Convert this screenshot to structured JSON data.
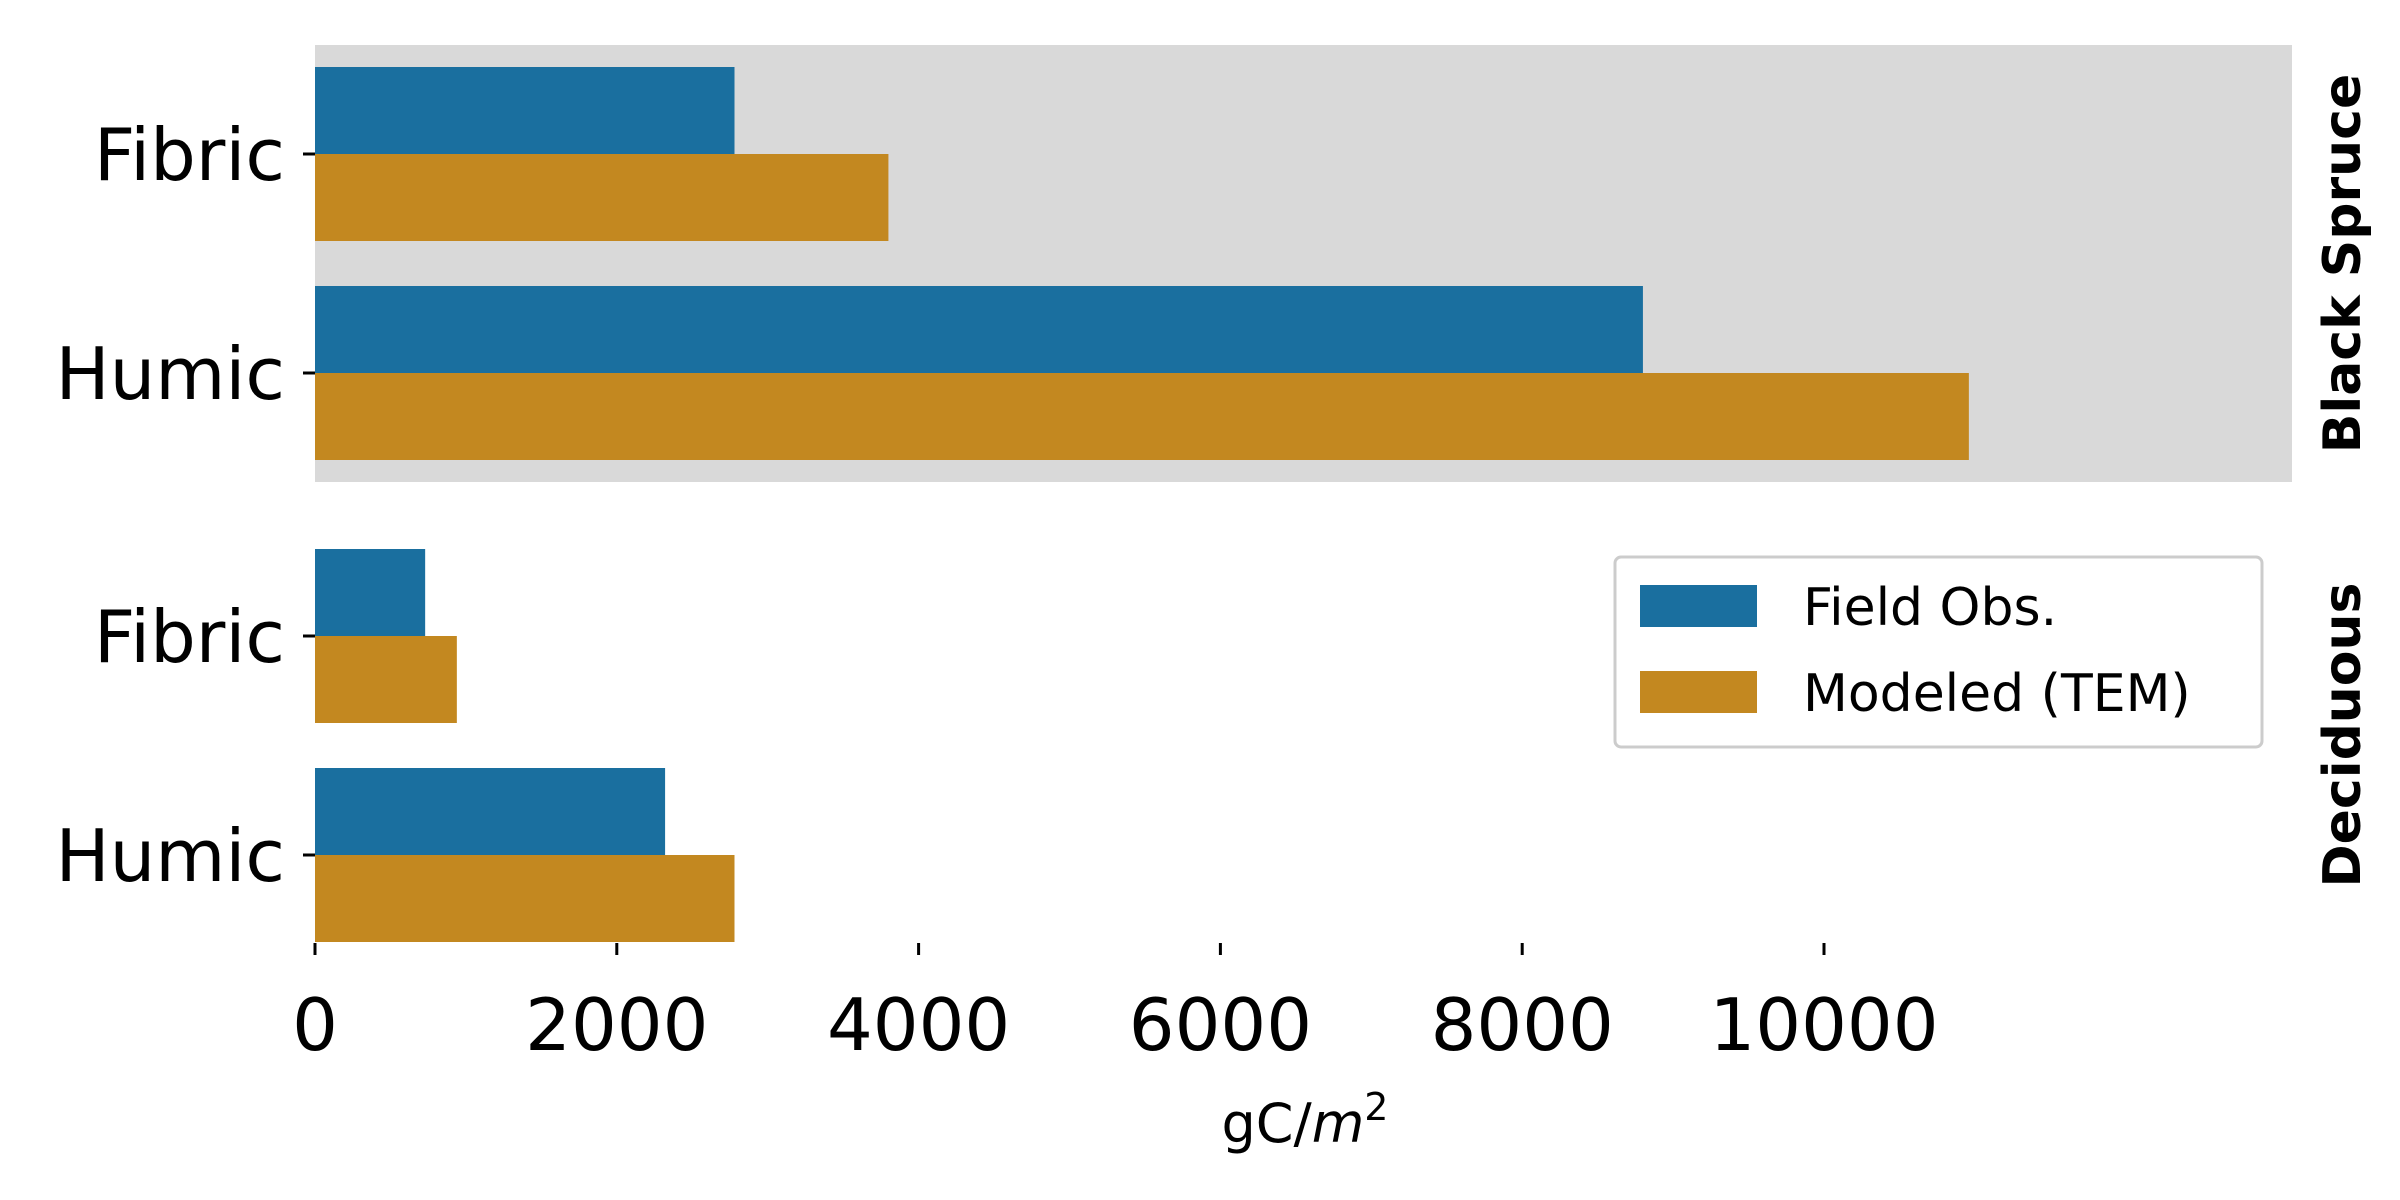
{
  "chart_data": {
    "type": "bar",
    "orientation": "horizontal",
    "xlabel": "gC/m²",
    "xlim": [
      0,
      11500
    ],
    "x_ticks": [
      "0",
      "2000",
      "4000",
      "6000",
      "8000",
      "10000"
    ],
    "categories": [
      "Fibric",
      "Humic"
    ],
    "series_colors": [
      "#1a6f9f",
      "#c38820"
    ],
    "legend": {
      "position": "upper-right of lower panel",
      "entries": [
        "Field Obs.",
        "Modeled (TEM)"
      ]
    },
    "facets": [
      {
        "label": "Black Spruce",
        "background": "#d9d9d9",
        "series": [
          {
            "name": "Field Obs.",
            "values": [
              2780,
              8800
            ]
          },
          {
            "name": "Modeled (TEM)",
            "values": [
              3800,
              10960
            ]
          }
        ]
      },
      {
        "label": "Deciduous",
        "background": "#ffffff",
        "series": [
          {
            "name": "Field Obs.",
            "values": [
              730,
              2320
            ]
          },
          {
            "name": "Modeled (TEM)",
            "values": [
              940,
              2780
            ]
          }
        ]
      }
    ]
  }
}
